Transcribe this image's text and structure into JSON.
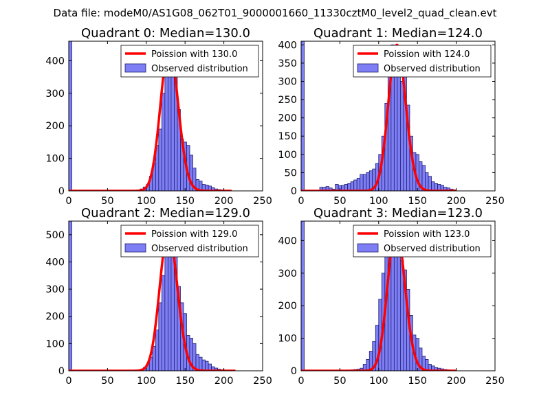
{
  "figure": {
    "suptitle": "Data file: modeM0/AS1G08_062T01_9000001660_11330cztM0_level2_quad_clean.evt"
  },
  "chart_data": [
    {
      "type": "bar",
      "title": "Quadrant 0: Median=130.0",
      "median": 130.0,
      "xlim": [
        0,
        250
      ],
      "ylim": [
        0,
        460
      ],
      "xticks": [
        0,
        50,
        100,
        150,
        200,
        250
      ],
      "yticks": [
        0,
        100,
        200,
        300,
        400
      ],
      "legend_position": "top-right",
      "legend": [
        "Poission with 130.0",
        "Observed distribution"
      ],
      "spike_at_zero": 460,
      "bins": [
        [
          80,
          1
        ],
        [
          84,
          2
        ],
        [
          88,
          3
        ],
        [
          92,
          6
        ],
        [
          96,
          12
        ],
        [
          100,
          20
        ],
        [
          104,
          45
        ],
        [
          108,
          85
        ],
        [
          112,
          140
        ],
        [
          116,
          190
        ],
        [
          120,
          300
        ],
        [
          124,
          410
        ],
        [
          128,
          440
        ],
        [
          132,
          420
        ],
        [
          136,
          370
        ],
        [
          140,
          250
        ],
        [
          144,
          160
        ],
        [
          148,
          150
        ],
        [
          152,
          140
        ],
        [
          156,
          110
        ],
        [
          160,
          70
        ],
        [
          164,
          35
        ],
        [
          168,
          30
        ],
        [
          172,
          20
        ],
        [
          176,
          18
        ],
        [
          180,
          15
        ],
        [
          184,
          10
        ],
        [
          188,
          6
        ],
        [
          192,
          4
        ],
        [
          196,
          3
        ],
        [
          200,
          2
        ],
        [
          204,
          1
        ]
      ],
      "poisson_xmax": 210
    },
    {
      "type": "bar",
      "title": "Quadrant 1: Median=124.0",
      "median": 124.0,
      "xlim": [
        0,
        250
      ],
      "ylim": [
        0,
        410
      ],
      "xticks": [
        0,
        50,
        100,
        150,
        200,
        250
      ],
      "yticks": [
        0,
        50,
        100,
        150,
        200,
        250,
        300,
        350,
        400
      ],
      "legend_position": "top-right",
      "legend": [
        "Poission with 124.0",
        "Observed distribution"
      ],
      "spike_at_zero": 410,
      "bins": [
        [
          24,
          10
        ],
        [
          28,
          10
        ],
        [
          32,
          12
        ],
        [
          36,
          8
        ],
        [
          40,
          5
        ],
        [
          44,
          18
        ],
        [
          48,
          14
        ],
        [
          52,
          15
        ],
        [
          56,
          18
        ],
        [
          60,
          20
        ],
        [
          64,
          25
        ],
        [
          68,
          30
        ],
        [
          72,
          35
        ],
        [
          76,
          45
        ],
        [
          80,
          45
        ],
        [
          84,
          50
        ],
        [
          88,
          55
        ],
        [
          92,
          60
        ],
        [
          96,
          75
        ],
        [
          100,
          100
        ],
        [
          104,
          150
        ],
        [
          108,
          240
        ],
        [
          112,
          370
        ],
        [
          116,
          400
        ],
        [
          120,
          390
        ],
        [
          124,
          345
        ],
        [
          128,
          300
        ],
        [
          132,
          330
        ],
        [
          136,
          235
        ],
        [
          140,
          150
        ],
        [
          144,
          105
        ],
        [
          148,
          100
        ],
        [
          152,
          80
        ],
        [
          156,
          70
        ],
        [
          160,
          50
        ],
        [
          164,
          40
        ],
        [
          168,
          25
        ],
        [
          172,
          20
        ],
        [
          176,
          18
        ],
        [
          180,
          15
        ],
        [
          184,
          10
        ],
        [
          188,
          8
        ],
        [
          192,
          5
        ],
        [
          196,
          3
        ]
      ],
      "poisson_xmax": 200
    },
    {
      "type": "bar",
      "title": "Quadrant 2: Median=129.0",
      "median": 129.0,
      "xlim": [
        0,
        250
      ],
      "ylim": [
        0,
        550
      ],
      "xticks": [
        0,
        50,
        100,
        150,
        200,
        250
      ],
      "yticks": [
        0,
        100,
        200,
        300,
        400,
        500
      ],
      "legend_position": "top-right",
      "legend": [
        "Poission with 129.0",
        "Observed distribution"
      ],
      "spike_at_zero": 550,
      "bins": [
        [
          80,
          1
        ],
        [
          84,
          2
        ],
        [
          88,
          3
        ],
        [
          92,
          6
        ],
        [
          96,
          12
        ],
        [
          100,
          25
        ],
        [
          104,
          50
        ],
        [
          108,
          90
        ],
        [
          112,
          150
        ],
        [
          116,
          250
        ],
        [
          120,
          350
        ],
        [
          124,
          490
        ],
        [
          128,
          510
        ],
        [
          132,
          500
        ],
        [
          136,
          430
        ],
        [
          140,
          310
        ],
        [
          144,
          250
        ],
        [
          148,
          210
        ],
        [
          152,
          130
        ],
        [
          156,
          120
        ],
        [
          160,
          100
        ],
        [
          164,
          60
        ],
        [
          168,
          50
        ],
        [
          172,
          40
        ],
        [
          176,
          35
        ],
        [
          180,
          25
        ],
        [
          184,
          15
        ],
        [
          188,
          10
        ],
        [
          192,
          6
        ],
        [
          196,
          4
        ],
        [
          200,
          3
        ],
        [
          204,
          2
        ],
        [
          208,
          1
        ]
      ],
      "poisson_xmax": 215
    },
    {
      "type": "bar",
      "title": "Quadrant 3: Median=123.0",
      "median": 123.0,
      "xlim": [
        0,
        250
      ],
      "ylim": [
        0,
        460
      ],
      "xticks": [
        0,
        50,
        100,
        150,
        200,
        250
      ],
      "yticks": [
        0,
        100,
        200,
        300,
        400
      ],
      "legend_position": "top-right",
      "legend": [
        "Poission with 123.0",
        "Observed distribution"
      ],
      "spike_at_zero": 460,
      "bins": [
        [
          60,
          2
        ],
        [
          64,
          3
        ],
        [
          68,
          4
        ],
        [
          72,
          5
        ],
        [
          76,
          8
        ],
        [
          80,
          20
        ],
        [
          84,
          35
        ],
        [
          88,
          60
        ],
        [
          92,
          90
        ],
        [
          96,
          140
        ],
        [
          100,
          220
        ],
        [
          104,
          300
        ],
        [
          108,
          390
        ],
        [
          112,
          420
        ],
        [
          116,
          440
        ],
        [
          120,
          420
        ],
        [
          124,
          400
        ],
        [
          128,
          340
        ],
        [
          132,
          310
        ],
        [
          136,
          250
        ],
        [
          140,
          170
        ],
        [
          144,
          110
        ],
        [
          148,
          100
        ],
        [
          152,
          70
        ],
        [
          156,
          45
        ],
        [
          160,
          35
        ],
        [
          164,
          20
        ],
        [
          168,
          15
        ],
        [
          172,
          10
        ],
        [
          176,
          8
        ],
        [
          180,
          6
        ],
        [
          184,
          4
        ],
        [
          188,
          3
        ],
        [
          192,
          2
        ],
        [
          196,
          1
        ]
      ],
      "poisson_xmax": 200
    }
  ]
}
